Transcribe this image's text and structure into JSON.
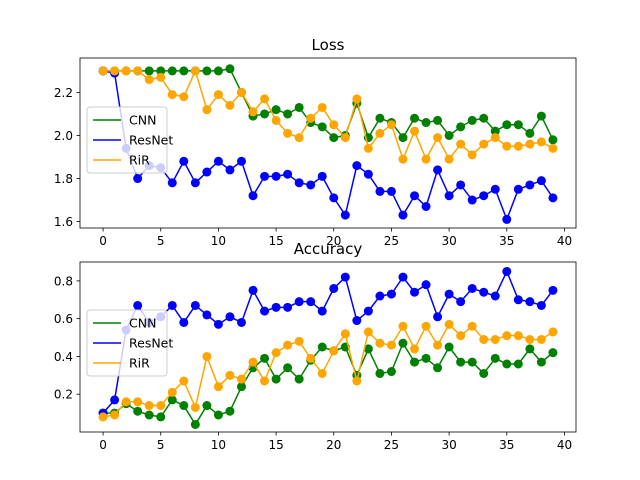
{
  "chart_data": [
    {
      "type": "line",
      "title": "Loss",
      "xlabel": "",
      "ylabel": "",
      "xlim": [
        -2,
        41
      ],
      "ylim": [
        1.57,
        2.36
      ],
      "xticks": [
        0,
        5,
        10,
        15,
        20,
        25,
        30,
        35,
        40
      ],
      "yticks": [
        1.6,
        1.8,
        2.0,
        2.2
      ],
      "ytick_labels": [
        "1.6",
        "1.8",
        "2.0",
        "2.2"
      ],
      "grid": false,
      "legend_position": "center-left",
      "x": [
        0,
        1,
        2,
        3,
        4,
        5,
        6,
        7,
        8,
        9,
        10,
        11,
        12,
        13,
        14,
        15,
        16,
        17,
        18,
        19,
        20,
        21,
        22,
        23,
        24,
        25,
        26,
        27,
        28,
        29,
        30,
        31,
        32,
        33,
        34,
        35,
        36,
        37,
        38,
        39
      ],
      "series": [
        {
          "name": "CNN",
          "color": "#008000",
          "values": [
            2.3,
            2.3,
            2.3,
            2.3,
            2.3,
            2.3,
            2.3,
            2.3,
            2.3,
            2.3,
            2.3,
            2.31,
            2.2,
            2.09,
            2.1,
            2.12,
            2.1,
            2.13,
            2.06,
            2.04,
            1.99,
            2.0,
            2.15,
            1.99,
            2.08,
            2.06,
            1.99,
            2.08,
            2.06,
            2.07,
            2.0,
            2.04,
            2.07,
            2.08,
            2.02,
            2.05,
            2.05,
            2.01,
            2.09,
            1.98
          ]
        },
        {
          "name": "ResNet",
          "color": "#0000ff",
          "values": [
            2.3,
            2.29,
            1.94,
            1.8,
            1.86,
            1.85,
            1.78,
            1.88,
            1.78,
            1.83,
            1.88,
            1.84,
            1.88,
            1.72,
            1.81,
            1.81,
            1.82,
            1.78,
            1.77,
            1.81,
            1.71,
            1.63,
            1.86,
            1.82,
            1.74,
            1.74,
            1.63,
            1.72,
            1.67,
            1.84,
            1.72,
            1.77,
            1.7,
            1.72,
            1.75,
            1.61,
            1.75,
            1.77,
            1.79,
            1.71
          ]
        },
        {
          "name": "RiR",
          "color": "#ffa500",
          "values": [
            2.3,
            2.3,
            2.3,
            2.3,
            2.26,
            2.27,
            2.19,
            2.18,
            2.3,
            2.12,
            2.19,
            2.14,
            2.2,
            2.11,
            2.17,
            2.07,
            2.01,
            1.99,
            2.08,
            2.13,
            2.05,
            1.99,
            2.17,
            1.94,
            2.01,
            2.05,
            1.89,
            2.02,
            1.89,
            1.99,
            1.89,
            1.96,
            1.91,
            1.96,
            1.99,
            1.95,
            1.95,
            1.96,
            1.97,
            1.94
          ]
        }
      ]
    },
    {
      "type": "line",
      "title": "Accuracy",
      "xlabel": "",
      "ylabel": "",
      "xlim": [
        -2,
        41
      ],
      "ylim": [
        0.0,
        0.9
      ],
      "xticks": [
        0,
        5,
        10,
        15,
        20,
        25,
        30,
        35,
        40
      ],
      "yticks": [
        0.2,
        0.4,
        0.6,
        0.8
      ],
      "ytick_labels": [
        "0.2",
        "0.4",
        "0.6",
        "0.8"
      ],
      "grid": false,
      "legend_position": "center-left",
      "x": [
        0,
        1,
        2,
        3,
        4,
        5,
        6,
        7,
        8,
        9,
        10,
        11,
        12,
        13,
        14,
        15,
        16,
        17,
        18,
        19,
        20,
        21,
        22,
        23,
        24,
        25,
        26,
        27,
        28,
        29,
        30,
        31,
        32,
        33,
        34,
        35,
        36,
        37,
        38,
        39
      ],
      "series": [
        {
          "name": "CNN",
          "color": "#008000",
          "values": [
            0.1,
            0.1,
            0.15,
            0.11,
            0.09,
            0.08,
            0.17,
            0.14,
            0.04,
            0.14,
            0.09,
            0.11,
            0.24,
            0.34,
            0.39,
            0.28,
            0.34,
            0.28,
            0.38,
            0.45,
            0.43,
            0.45,
            0.3,
            0.44,
            0.31,
            0.32,
            0.47,
            0.37,
            0.39,
            0.34,
            0.45,
            0.37,
            0.37,
            0.31,
            0.39,
            0.36,
            0.36,
            0.44,
            0.37,
            0.42
          ]
        },
        {
          "name": "ResNet",
          "color": "#0000ff",
          "values": [
            0.1,
            0.17,
            0.54,
            0.67,
            0.58,
            0.61,
            0.67,
            0.58,
            0.67,
            0.62,
            0.57,
            0.61,
            0.58,
            0.75,
            0.64,
            0.66,
            0.66,
            0.69,
            0.69,
            0.64,
            0.76,
            0.82,
            0.59,
            0.64,
            0.72,
            0.73,
            0.82,
            0.74,
            0.78,
            0.61,
            0.73,
            0.69,
            0.76,
            0.74,
            0.72,
            0.85,
            0.7,
            0.69,
            0.67,
            0.75
          ]
        },
        {
          "name": "RiR",
          "color": "#ffa500",
          "values": [
            0.08,
            0.09,
            0.16,
            0.16,
            0.14,
            0.14,
            0.21,
            0.27,
            0.13,
            0.4,
            0.24,
            0.3,
            0.28,
            0.37,
            0.27,
            0.42,
            0.46,
            0.48,
            0.39,
            0.31,
            0.43,
            0.52,
            0.27,
            0.53,
            0.47,
            0.46,
            0.56,
            0.44,
            0.56,
            0.46,
            0.57,
            0.51,
            0.56,
            0.49,
            0.49,
            0.51,
            0.51,
            0.49,
            0.49,
            0.53
          ]
        }
      ]
    }
  ]
}
